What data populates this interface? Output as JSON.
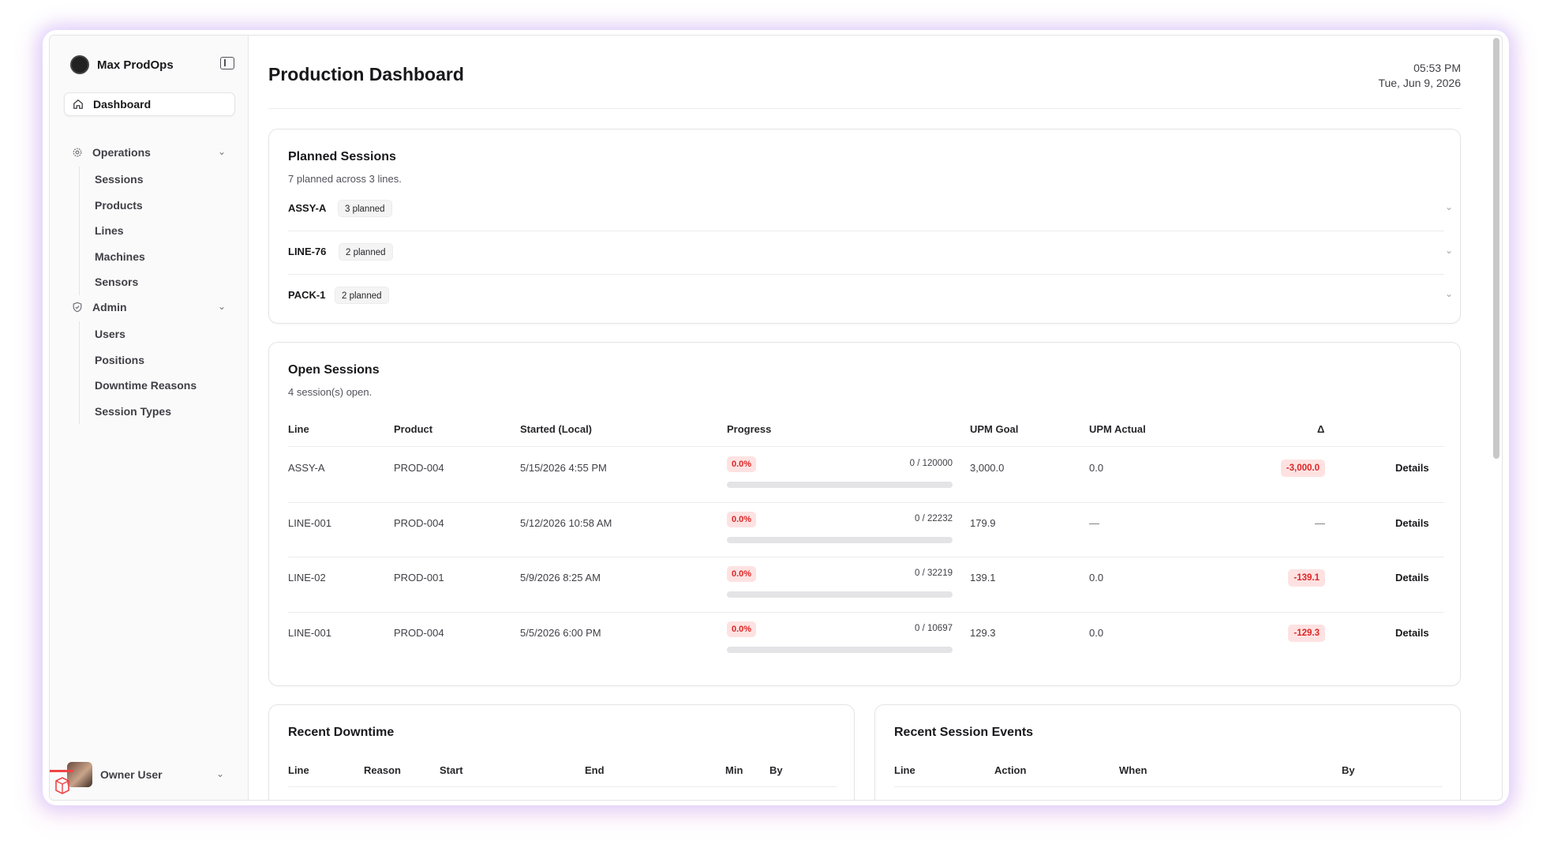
{
  "brand": {
    "name": "Max ProdOps"
  },
  "sidebar": {
    "dashboard_label": "Dashboard",
    "operations": {
      "label": "Operations",
      "items": [
        "Sessions",
        "Products",
        "Lines",
        "Machines",
        "Sensors"
      ]
    },
    "admin": {
      "label": "Admin",
      "items": [
        "Users",
        "Positions",
        "Downtime Reasons",
        "Session Types"
      ]
    },
    "user": {
      "name": "Owner User"
    }
  },
  "header": {
    "title": "Production Dashboard",
    "time": "05:53 PM",
    "date": "Tue, Jun 9, 2026"
  },
  "planned": {
    "title": "Planned Sessions",
    "subtitle": "7 planned across 3 lines.",
    "rows": [
      {
        "line": "ASSY-A",
        "badge": "3 planned"
      },
      {
        "line": "LINE-76",
        "badge": "2 planned"
      },
      {
        "line": "PACK-1",
        "badge": "2 planned"
      }
    ]
  },
  "open": {
    "title": "Open Sessions",
    "subtitle": "4 session(s) open.",
    "columns": [
      "Line",
      "Product",
      "Started (Local)",
      "Progress",
      "UPM Goal",
      "UPM Actual",
      "Δ"
    ],
    "rows": [
      {
        "line": "ASSY-A",
        "product": "PROD-004",
        "started": "5/15/2026 4:55 PM",
        "pct": "0.0%",
        "ratio": "0 / 120000",
        "progress": 0.0,
        "goal": "3,000.0",
        "actual": "0.0",
        "delta": "-3,000.0",
        "details": "Details"
      },
      {
        "line": "LINE-001",
        "product": "PROD-004",
        "started": "5/12/2026 10:58 AM",
        "pct": "0.0%",
        "ratio": "0 / 22232",
        "progress": 0.0,
        "goal": "179.9",
        "actual": "—",
        "delta": "—",
        "details": "Details"
      },
      {
        "line": "LINE-02",
        "product": "PROD-001",
        "started": "5/9/2026 8:25 AM",
        "pct": "0.0%",
        "ratio": "0 / 32219",
        "progress": 0.0,
        "goal": "139.1",
        "actual": "0.0",
        "delta": "-139.1",
        "details": "Details"
      },
      {
        "line": "LINE-001",
        "product": "PROD-004",
        "started": "5/5/2026 6:00 PM",
        "pct": "0.0%",
        "ratio": "0 / 10697",
        "progress": 0.0,
        "goal": "129.3",
        "actual": "0.0",
        "delta": "-129.3",
        "details": "Details"
      }
    ]
  },
  "downtime": {
    "title": "Recent Downtime",
    "columns": [
      "Line",
      "Reason",
      "Start",
      "End",
      "Min",
      "By"
    ]
  },
  "events": {
    "title": "Recent Session Events",
    "columns": [
      "Line",
      "Action",
      "When",
      "By"
    ]
  }
}
